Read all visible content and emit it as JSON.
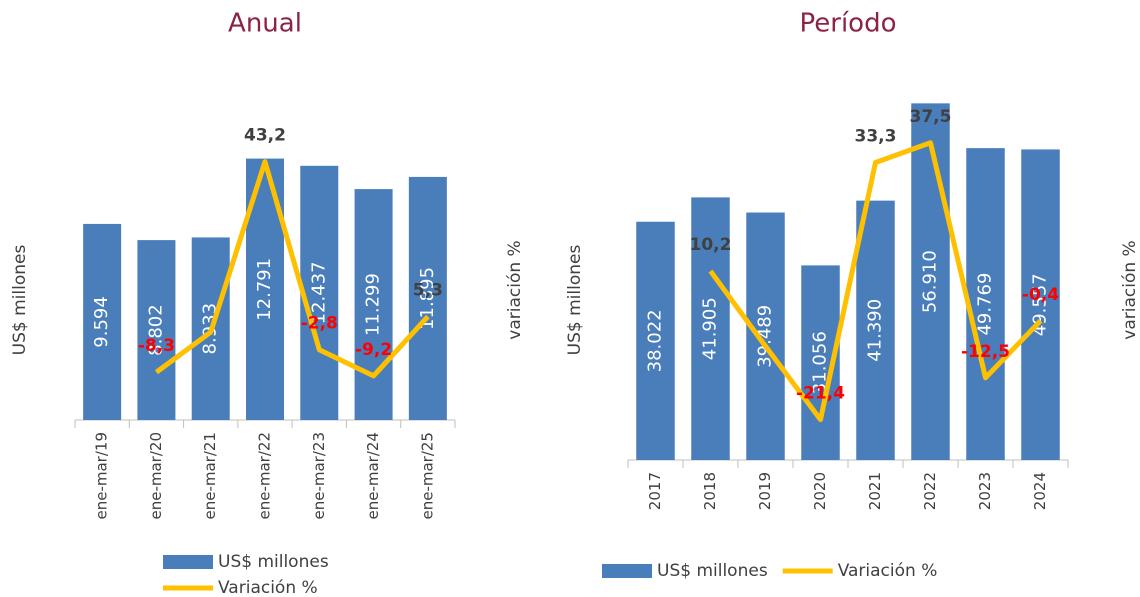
{
  "chart_data": [
    {
      "type": "combo",
      "title": "Anual",
      "categories": [
        "ene-mar/19",
        "ene-mar/20",
        "ene-mar/21",
        "ene-mar/22",
        "ene-mar/23",
        "ene-mar/24",
        "ene-mar/25"
      ],
      "series": [
        {
          "name": "US$ millones",
          "type": "bar",
          "color": "#4a7ebb",
          "values": [
            9594,
            8802,
            8933,
            12791,
            12437,
            11299,
            11895
          ],
          "value_labels": [
            "9.594",
            "8.802",
            "8.933",
            "12.791",
            "12.437",
            "11.299",
            "11.895"
          ]
        },
        {
          "name": "Variación %",
          "type": "line",
          "axis": "y2",
          "color": "#ffc000",
          "values": [
            null,
            -8.3,
            1.5,
            43.2,
            -2.8,
            -9.2,
            5.3
          ],
          "value_labels": [
            null,
            "-8,3",
            null,
            "43,2",
            "-2,8",
            "-9,2",
            "5,3"
          ]
        }
      ],
      "ylabel": "US$ millones",
      "y2label": "variación %",
      "ylim": [
        0,
        16000
      ],
      "y2lim": [
        -20,
        60
      ],
      "legend": "bottom"
    },
    {
      "type": "combo",
      "title": "Período",
      "categories": [
        "2017",
        "2018",
        "2019",
        "2020",
        "2021",
        "2022",
        "2023",
        "2024"
      ],
      "series": [
        {
          "name": "US$ millones",
          "type": "bar",
          "color": "#4a7ebb",
          "values": [
            38022,
            41905,
            39489,
            31056,
            41390,
            56910,
            49769,
            49557
          ],
          "value_labels": [
            "38.022",
            "41.905",
            "39.489",
            "31.056",
            "41.390",
            "56.910",
            "49.769",
            "49.557"
          ]
        },
        {
          "name": "Variación %",
          "type": "line",
          "axis": "y2",
          "color": "#ffc000",
          "values": [
            null,
            10.2,
            -5.8,
            -21.4,
            33.3,
            37.5,
            -12.5,
            -0.4
          ],
          "value_labels": [
            null,
            "10,2",
            null,
            "-21,4",
            "33,3",
            "37,5",
            "-12,5",
            "-0,4"
          ]
        }
      ],
      "ylabel": "US$ millones",
      "y2label": "variación %",
      "ylim": [
        0,
        60000
      ],
      "y2lim": [
        -30,
        50
      ],
      "legend": "bottom"
    }
  ]
}
